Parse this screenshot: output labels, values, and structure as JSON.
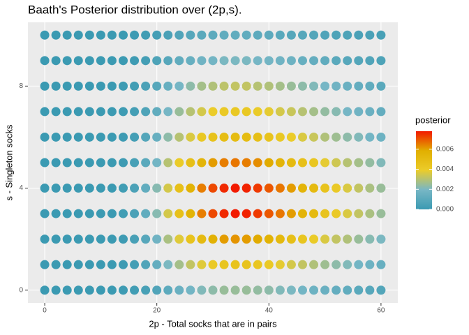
{
  "chart_data": {
    "type": "heatmap",
    "title": "Baath's Posterior distribution over (2p,s).",
    "x_label": "2p - Total socks that are in pairs",
    "y_label": "s - Singleton socks",
    "legend_title": "posterior",
    "x": [
      0,
      2,
      4,
      6,
      8,
      10,
      12,
      14,
      16,
      18,
      20,
      22,
      24,
      26,
      28,
      30,
      32,
      34,
      36,
      38,
      40,
      42,
      44,
      46,
      48,
      50,
      52,
      54,
      56,
      58,
      60
    ],
    "y": [
      0,
      1,
      2,
      3,
      4,
      5,
      6,
      7,
      8,
      9,
      10
    ],
    "values": [
      [
        0,
        0,
        0,
        0,
        0,
        0,
        0,
        0.0001,
        0.0002,
        0.0004,
        0.0007,
        0.0011,
        0.0015,
        0.0018,
        0.0021,
        0.0023,
        0.0025,
        0.0025,
        0.0025,
        0.0024,
        0.0023,
        0.0021,
        0.002,
        0.0018,
        0.0016,
        0.0015,
        0.0013,
        0.0012,
        0.001,
        0.0009,
        0.0008
      ],
      [
        0,
        0,
        0,
        0,
        0,
        0,
        0,
        0.0001,
        0.0003,
        0.0007,
        0.0013,
        0.002,
        0.0027,
        0.0032,
        0.0037,
        0.0041,
        0.0044,
        0.0045,
        0.0045,
        0.0043,
        0.0041,
        0.0038,
        0.0035,
        0.0032,
        0.0029,
        0.0026,
        0.0023,
        0.0021,
        0.0018,
        0.0016,
        0.0014
      ],
      [
        0,
        0,
        0,
        0,
        0,
        0,
        0,
        0.0001,
        0.0004,
        0.0009,
        0.0017,
        0.0028,
        0.0037,
        0.0045,
        0.0051,
        0.0057,
        0.0061,
        0.0062,
        0.0061,
        0.0059,
        0.0056,
        0.0052,
        0.0048,
        0.0044,
        0.004,
        0.0036,
        0.0032,
        0.0029,
        0.0025,
        0.0022,
        0.002
      ],
      [
        0,
        0,
        0,
        0,
        0,
        0,
        0,
        0.0002,
        0.0005,
        0.0012,
        0.0022,
        0.0035,
        0.0047,
        0.0056,
        0.0065,
        0.0072,
        0.0076,
        0.0078,
        0.0077,
        0.0074,
        0.007,
        0.0066,
        0.0061,
        0.0055,
        0.0051,
        0.0045,
        0.0041,
        0.0036,
        0.0032,
        0.0028,
        0.0025
      ],
      [
        0,
        0,
        0,
        0,
        0,
        0,
        0,
        0.0002,
        0.0005,
        0.0012,
        0.0022,
        0.0035,
        0.0047,
        0.0056,
        0.0065,
        0.0072,
        0.0076,
        0.0078,
        0.0077,
        0.0074,
        0.007,
        0.0066,
        0.0061,
        0.0055,
        0.0051,
        0.0045,
        0.0041,
        0.0036,
        0.0032,
        0.0028,
        0.0025
      ],
      [
        0,
        0,
        0,
        0,
        0,
        0,
        0,
        0.0001,
        0.0004,
        0.001,
        0.0018,
        0.003,
        0.004,
        0.0048,
        0.0055,
        0.0061,
        0.0065,
        0.0066,
        0.0065,
        0.0063,
        0.0059,
        0.0055,
        0.0051,
        0.0047,
        0.0043,
        0.0038,
        0.0034,
        0.003,
        0.0027,
        0.0024,
        0.0021
      ],
      [
        0,
        0,
        0,
        0,
        0,
        0,
        0,
        0.0001,
        0.0003,
        0.0008,
        0.0014,
        0.0023,
        0.003,
        0.0036,
        0.0042,
        0.0046,
        0.0049,
        0.005,
        0.005,
        0.0048,
        0.0045,
        0.0042,
        0.0039,
        0.0036,
        0.0033,
        0.0029,
        0.0026,
        0.0023,
        0.0021,
        0.0018,
        0.0016
      ],
      [
        0,
        0,
        0,
        0,
        0,
        0,
        0,
        0.0001,
        0.0003,
        0.0006,
        0.0012,
        0.0019,
        0.0025,
        0.003,
        0.0035,
        0.0039,
        0.0041,
        0.0042,
        0.0042,
        0.004,
        0.0038,
        0.0035,
        0.0033,
        0.003,
        0.0027,
        0.0024,
        0.0022,
        0.0019,
        0.0017,
        0.0015,
        0.0013
      ],
      [
        0,
        0,
        0,
        0,
        0,
        0,
        0,
        0.0001,
        0.0002,
        0.0005,
        0.0009,
        0.0014,
        0.0019,
        0.0023,
        0.0027,
        0.0029,
        0.0031,
        0.0032,
        0.0032,
        0.003,
        0.0029,
        0.0027,
        0.0025,
        0.0023,
        0.0021,
        0.0019,
        0.0017,
        0.0015,
        0.0013,
        0.0012,
        0.001
      ],
      [
        0,
        0,
        0,
        0,
        0,
        0,
        0,
        0,
        0.0001,
        0.0003,
        0.0006,
        0.0009,
        0.0012,
        0.0014,
        0.0017,
        0.0018,
        0.002,
        0.002,
        0.002,
        0.0019,
        0.0018,
        0.0017,
        0.0016,
        0.0014,
        0.0013,
        0.0012,
        0.001,
        0.0009,
        0.0008,
        0.0007,
        0.0006
      ],
      [
        0,
        0,
        0,
        0,
        0,
        0,
        0,
        0,
        0.0001,
        0.0002,
        0.0003,
        0.0005,
        0.0007,
        0.0009,
        0.001,
        0.0011,
        0.0012,
        0.0012,
        0.0012,
        0.0011,
        0.0011,
        0.001,
        0.0009,
        0.0009,
        0.0008,
        0.0007,
        0.0006,
        0.0006,
        0.0005,
        0.0005,
        0.0004
      ]
    ],
    "xlim": [
      -3,
      63
    ],
    "ylim": [
      -0.5,
      10.5
    ],
    "xticks": [
      0,
      20,
      40,
      60
    ],
    "yticks": [
      0,
      4,
      8
    ],
    "grid": true,
    "colors": [
      "#3B9AB2",
      "#78B7C5",
      "#EBCC2A",
      "#E1AF00",
      "#F21A00"
    ],
    "clim": [
      0,
      0.0078
    ],
    "legend_ticks": [
      {
        "value": 0,
        "label": "0.000"
      },
      {
        "value": 0.002,
        "label": "0.002"
      },
      {
        "value": 0.004,
        "label": "0.004"
      },
      {
        "value": 0.006,
        "label": "0.006"
      }
    ],
    "legend_position": "right"
  }
}
